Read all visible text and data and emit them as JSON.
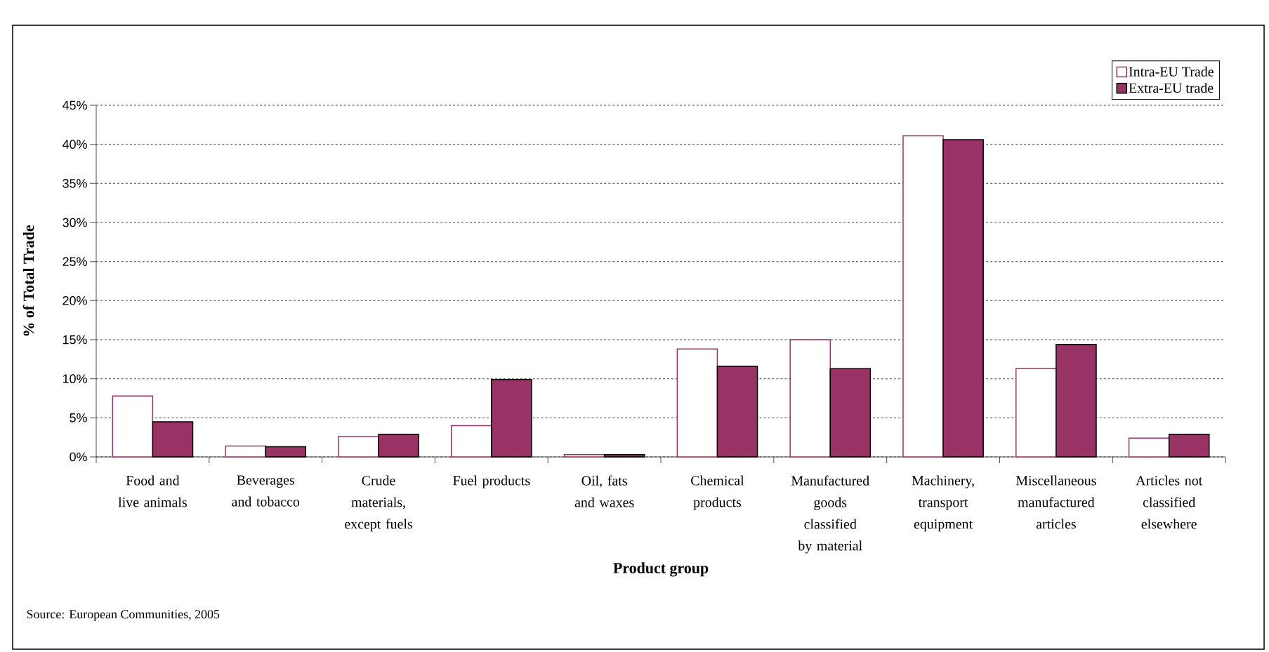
{
  "chart_data": {
    "type": "bar",
    "xlabel": "Product group",
    "ylabel": "% of Total Trade",
    "categories": [
      "Food and live animals",
      "Beverages and tobacco",
      "Crude materials, except fuels",
      "Fuel products",
      "Oil, fats and waxes",
      "Chemical products",
      "Manufactured goods classified by material",
      "Machinery, transport equipment",
      "Miscellaneous manufactured articles",
      "Articles not classified elsewhere"
    ],
    "series": [
      {
        "name": "Intra-EU Trade",
        "color": "#ffffff",
        "values": [
          7.8,
          1.4,
          2.6,
          4.0,
          0.3,
          13.8,
          15.0,
          41.1,
          11.3,
          2.4
        ]
      },
      {
        "name": "Extra-EU trade",
        "color": "#993366",
        "values": [
          4.5,
          1.3,
          2.9,
          9.9,
          0.3,
          11.6,
          11.3,
          40.6,
          14.4,
          2.9
        ]
      }
    ],
    "ylim": [
      0,
      45
    ],
    "yticks": [
      {
        "value": 0,
        "label": "0%"
      },
      {
        "value": 5,
        "label": "5%"
      },
      {
        "value": 10,
        "label": "10%"
      },
      {
        "value": 15,
        "label": "15%"
      },
      {
        "value": 20,
        "label": "20%"
      },
      {
        "value": 25,
        "label": "25%"
      },
      {
        "value": 30,
        "label": "30%"
      },
      {
        "value": 35,
        "label": "35%"
      },
      {
        "value": 40,
        "label": "40%"
      },
      {
        "value": 45,
        "label": "45%"
      }
    ],
    "grid": "y",
    "legend": "top right",
    "annotations": [
      "Source: European Communities, 2005"
    ]
  }
}
